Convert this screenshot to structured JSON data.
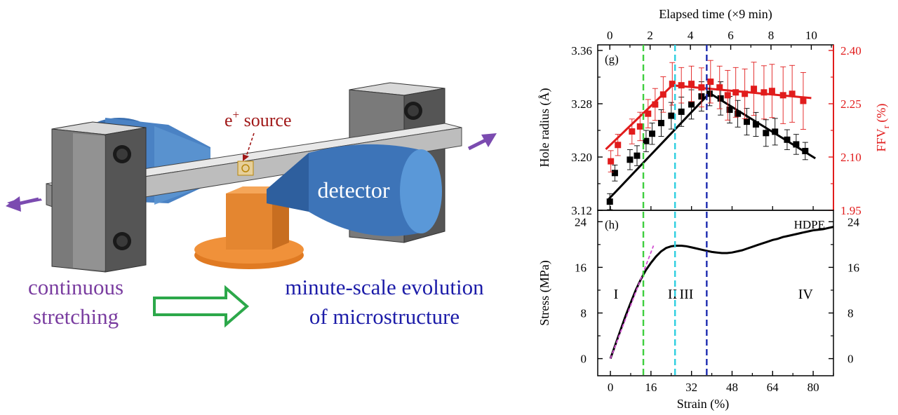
{
  "illustration": {
    "source_label_e": "e",
    "source_label_sup": "+",
    "source_label_rest": " source",
    "detector_label": "detector",
    "caption_left_line1": "continuous",
    "caption_left_line2": "stretching",
    "caption_right_line1": "minute-scale evolution",
    "caption_right_line2": "of microstructure",
    "colors": {
      "left_caption": "#7a3da0",
      "right_caption": "#1c1ca8",
      "source_label": "#a01818",
      "detector_body": "#3d74b8",
      "arrow_outline": "#2ca84a",
      "stretch_arrows": "#7b4bb0",
      "stage": "#f0913a"
    }
  },
  "chart_data": [
    {
      "id": "g",
      "type": "scatter",
      "panel_label": "(g)",
      "top_axis": {
        "label": "Elapsed time (×9 min)",
        "range": [
          -0.6,
          11.1
        ],
        "ticks": [
          0,
          2,
          4,
          6,
          8,
          10
        ]
      },
      "x_range_strain": [
        -5,
        88
      ],
      "ylabel": "Hole radius (Å)",
      "ylim": [
        3.12,
        3.36
      ],
      "yticks": [
        3.12,
        3.2,
        3.28,
        3.36
      ],
      "y2label_main": "FFV",
      "y2label_sub": "r",
      "y2label_unit": " (%)",
      "y2lim": [
        1.95,
        2.4
      ],
      "y2ticks": [
        1.95,
        2.1,
        2.25,
        2.4
      ],
      "series": [
        {
          "axis": "left",
          "color": "#000000",
          "x": [
            0.0,
            0.25,
            1.0,
            1.35,
            1.8,
            2.1,
            2.55,
            3.05,
            3.55,
            4.05,
            4.55,
            4.95,
            5.5,
            5.95,
            6.35,
            6.8,
            7.25,
            7.75,
            8.2,
            8.8,
            9.25,
            9.7
          ],
          "y": [
            3.133,
            3.176,
            3.196,
            3.202,
            3.224,
            3.235,
            3.251,
            3.262,
            3.268,
            3.279,
            3.291,
            3.295,
            3.288,
            3.271,
            3.265,
            3.253,
            3.249,
            3.236,
            3.238,
            3.226,
            3.219,
            3.209
          ],
          "err": [
            0.012,
            0.012,
            0.015,
            0.015,
            0.016,
            0.016,
            0.02,
            0.02,
            0.022,
            0.022,
            0.022,
            0.018,
            0.025,
            0.02,
            0.02,
            0.02,
            0.018,
            0.02,
            0.02,
            0.015,
            0.015,
            0.013
          ]
        },
        {
          "axis": "right",
          "color": "#e11c1c",
          "x": [
            0.05,
            0.4,
            1.1,
            1.5,
            1.9,
            2.25,
            2.65,
            3.1,
            3.55,
            4.05,
            4.55,
            5.0,
            5.45,
            5.85,
            6.25,
            6.7,
            7.15,
            7.65,
            8.05,
            8.6,
            9.05,
            9.6
          ],
          "y": [
            2.088,
            2.134,
            2.172,
            2.186,
            2.222,
            2.248,
            2.276,
            2.306,
            2.302,
            2.306,
            2.296,
            2.312,
            2.296,
            2.274,
            2.282,
            2.278,
            2.292,
            2.282,
            2.286,
            2.274,
            2.278,
            2.258
          ],
          "err": [
            0.03,
            0.03,
            0.035,
            0.04,
            0.04,
            0.045,
            0.05,
            0.06,
            0.05,
            0.05,
            0.055,
            0.06,
            0.06,
            0.07,
            0.07,
            0.07,
            0.075,
            0.075,
            0.075,
            0.08,
            0.08,
            0.08
          ]
        }
      ],
      "fits": [
        {
          "color": "#000000",
          "axis": "left",
          "points": [
            [
              -0.05,
              3.137
            ],
            [
              4.95,
              3.296
            ],
            [
              10.2,
              3.198
            ]
          ]
        },
        {
          "color": "#e11c1c",
          "axis": "right",
          "points": [
            [
              -0.2,
              2.122
            ],
            [
              3.1,
              2.302
            ],
            [
              10.0,
              2.266
            ]
          ]
        }
      ]
    },
    {
      "id": "h",
      "type": "line",
      "panel_label": "(h)",
      "material_label": "HDPE",
      "xlabel": "Strain (%)",
      "xlim": [
        -5,
        88
      ],
      "xticks": [
        0,
        16,
        32,
        48,
        64,
        80
      ],
      "ylabel": "Stress (MPa)",
      "ylim": [
        -3,
        26
      ],
      "yticks": [
        0,
        8,
        16,
        24
      ],
      "y2ticks": [
        0,
        8,
        16,
        24
      ],
      "regions": [
        "I",
        "II",
        "III",
        "IV"
      ],
      "region_x": [
        2.2,
        24.5,
        30.0,
        77.0
      ],
      "region_y": 10.5,
      "series": [
        {
          "name": "",
          "color": "#000000",
          "x": [
            0,
            2,
            4,
            6,
            8,
            10,
            12,
            14,
            16,
            18,
            20,
            22,
            24,
            26,
            28,
            30,
            32,
            34,
            36,
            38,
            40,
            42,
            44,
            46,
            48,
            50,
            52,
            54,
            56,
            58,
            60,
            62,
            64,
            66,
            68,
            70,
            72,
            74,
            76,
            78,
            80,
            82,
            84,
            86,
            88
          ],
          "y": [
            0,
            2.5,
            5.0,
            7.5,
            9.8,
            12.0,
            13.9,
            15.5,
            16.8,
            17.9,
            18.8,
            19.4,
            19.7,
            19.8,
            19.8,
            19.7,
            19.5,
            19.3,
            19.1,
            18.9,
            18.7,
            18.6,
            18.5,
            18.5,
            18.6,
            18.8,
            19.0,
            19.3,
            19.6,
            19.9,
            20.2,
            20.5,
            20.8,
            21.0,
            21.3,
            21.5,
            21.7,
            21.9,
            22.1,
            22.3,
            22.5,
            22.6,
            22.7,
            22.9,
            23.1
          ]
        }
      ],
      "linear_fit": {
        "color": "#d14fd1",
        "points": [
          [
            0,
            0
          ],
          [
            17,
            19.8
          ]
        ]
      }
    }
  ],
  "dividers": [
    {
      "strain": 13.0,
      "color": "#3fcf3f"
    },
    {
      "strain": 25.5,
      "color": "#2fcfe0"
    },
    {
      "strain": 38.0,
      "color": "#1c2bb0"
    }
  ]
}
